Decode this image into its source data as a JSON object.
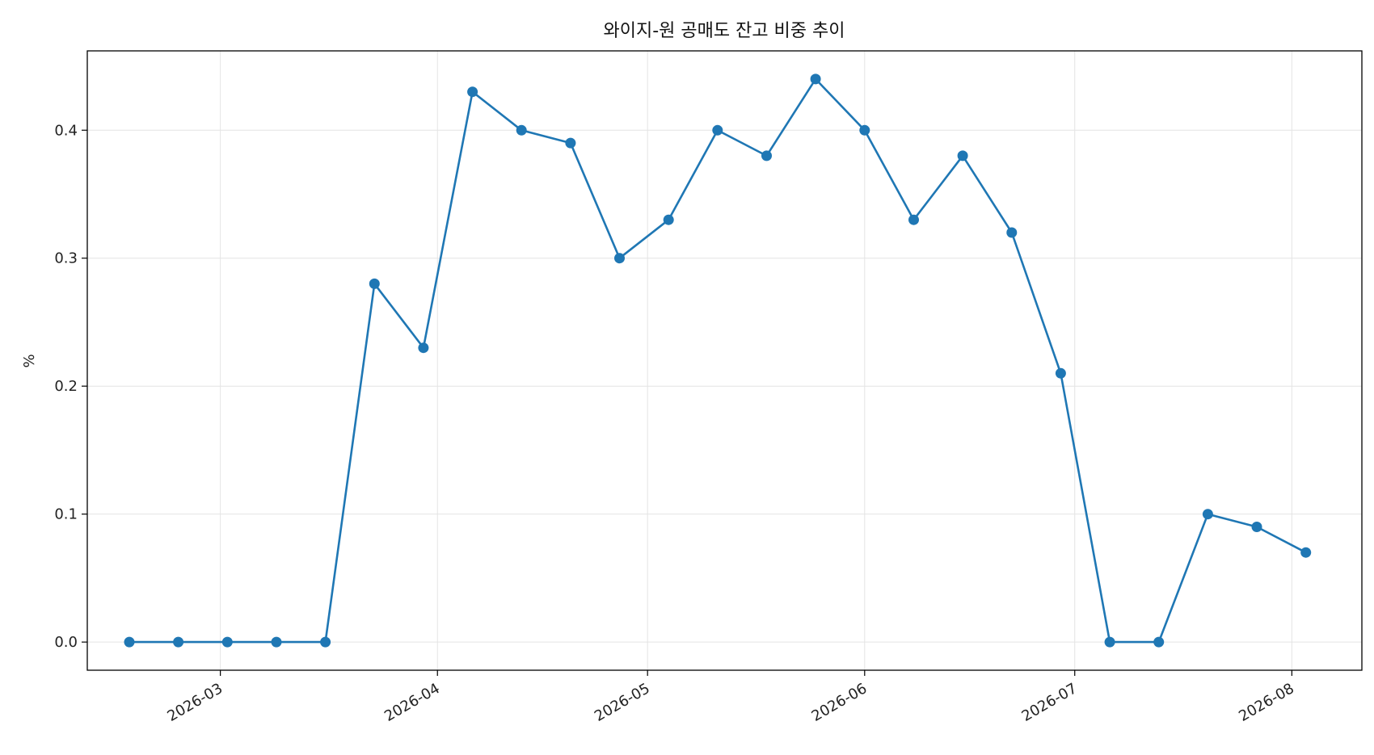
{
  "chart_data": {
    "type": "line",
    "title": "와이지-원 공매도 잔고 비중 추이",
    "xlabel": "",
    "ylabel": "%",
    "x": [
      "2026-02-16",
      "2026-02-23",
      "2026-03-02",
      "2026-03-09",
      "2026-03-16",
      "2026-03-23",
      "2026-03-30",
      "2026-04-06",
      "2026-04-13",
      "2026-04-20",
      "2026-04-27",
      "2026-05-04",
      "2026-05-11",
      "2026-05-18",
      "2026-05-25",
      "2026-06-01",
      "2026-06-08",
      "2026-06-15",
      "2026-06-22",
      "2026-06-29",
      "2026-07-06",
      "2026-07-13",
      "2026-07-20",
      "2026-07-27",
      "2026-08-03"
    ],
    "series": [
      {
        "values": [
          0.0,
          0.0,
          0.0,
          0.0,
          0.0,
          0.28,
          0.23,
          0.43,
          0.4,
          0.39,
          0.3,
          0.33,
          0.4,
          0.38,
          0.44,
          0.4,
          0.33,
          0.38,
          0.32,
          0.21,
          0.0,
          0.0,
          0.1,
          0.09,
          0.07
        ],
        "color": "#1f77b4",
        "marker": "circle"
      }
    ],
    "x_ticks": [
      "2026-03",
      "2026-04",
      "2026-05",
      "2026-06",
      "2026-07",
      "2026-08"
    ],
    "y_ticks": [
      "0.0",
      "0.1",
      "0.2",
      "0.3",
      "0.4"
    ],
    "xlim": [
      "2026-02-10",
      "2026-08-11"
    ],
    "ylim": [
      -0.022,
      0.462
    ],
    "grid": true,
    "legend": "none"
  }
}
